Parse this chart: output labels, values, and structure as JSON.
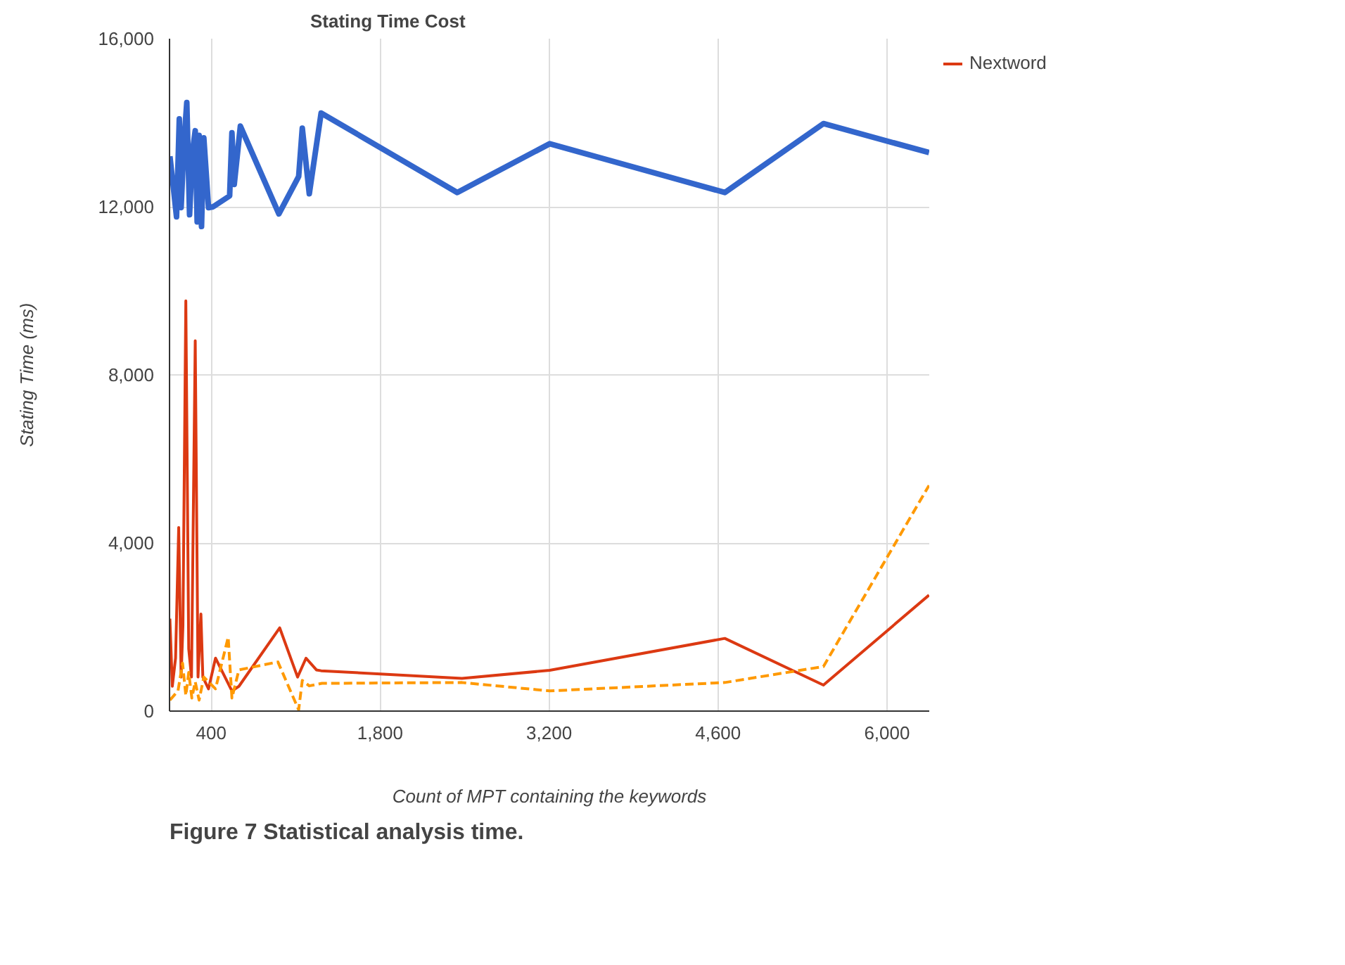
{
  "chart_data": {
    "type": "line",
    "title": "Stating Time Cost",
    "xlabel": "Count of MPT containing the keywords",
    "ylabel": "Stating Time (ms)",
    "annotations": [
      "Figure 7 Statistical analysis time."
    ],
    "xlim": [
      55,
      6350
    ],
    "ylim": [
      0,
      16000
    ],
    "xticks": [
      400,
      {
        "value": 1800,
        "label": "1,800"
      },
      {
        "value": 3200,
        "label": "3,200"
      },
      {
        "value": 4600,
        "label": "4,600"
      },
      {
        "value": 6000,
        "label": "6,000"
      }
    ],
    "yticks": [
      0,
      {
        "value": 4000,
        "label": "4,000"
      },
      {
        "value": 8000,
        "label": "8,000"
      },
      {
        "value": 12000,
        "label": "12,000"
      },
      {
        "value": 16000,
        "label": "16,000"
      }
    ],
    "grid": true,
    "legend": "top right",
    "series": [
      {
        "color": "#3366cc",
        "line_style": "solid",
        "x": [
          58,
          86,
          113,
          136,
          151,
          175,
          198,
          221,
          245,
          268,
          284,
          300,
          320,
          339,
          378,
          416,
          553,
          572,
          591,
          642,
          961,
          1125,
          1155,
          1213,
          1311,
          2439,
          3205,
          4656,
          5473,
          6348
        ],
        "values": [
          13200,
          12480,
          11760,
          14090,
          11980,
          13530,
          14480,
          11810,
          13310,
          13810,
          11640,
          13700,
          11530,
          13640,
          11980,
          12000,
          12260,
          13760,
          12530,
          13920,
          11830,
          12720,
          13870,
          12310,
          14230,
          12340,
          13500,
          12340,
          13980,
          13290
        ]
      },
      {
        "name": "Nextword",
        "color": "#dc3912",
        "line_style": "solid",
        "x": [
          58,
          78,
          105,
          131,
          151,
          166,
          190,
          214,
          237,
          268,
          291,
          315,
          331,
          378,
          436,
          572,
          630,
          968,
          1116,
          1186,
          1272,
          1311,
          2478,
          3205,
          4656,
          5473,
          6348
        ],
        "values": [
          2200,
          590,
          1260,
          4370,
          810,
          2030,
          9760,
          1480,
          810,
          8810,
          810,
          2310,
          810,
          530,
          1260,
          480,
          590,
          1980,
          810,
          1260,
          980,
          960,
          780,
          970,
          1730,
          620,
          2760
        ]
      },
      {
        "color": "#ff9900",
        "line_style": "dashed",
        "x": [
          58,
          125,
          163,
          190,
          214,
          240,
          268,
          300,
          339,
          436,
          541,
          572,
          630,
          953,
          1125,
          1155,
          1213,
          1318,
          2478,
          3205,
          4656,
          5473,
          6348
        ],
        "values": [
          260,
          480,
          1140,
          370,
          920,
          310,
          700,
          260,
          810,
          530,
          1760,
          310,
          980,
          1170,
          30,
          730,
          600,
          660,
          680,
          480,
          680,
          1060,
          5370
        ]
      }
    ]
  }
}
